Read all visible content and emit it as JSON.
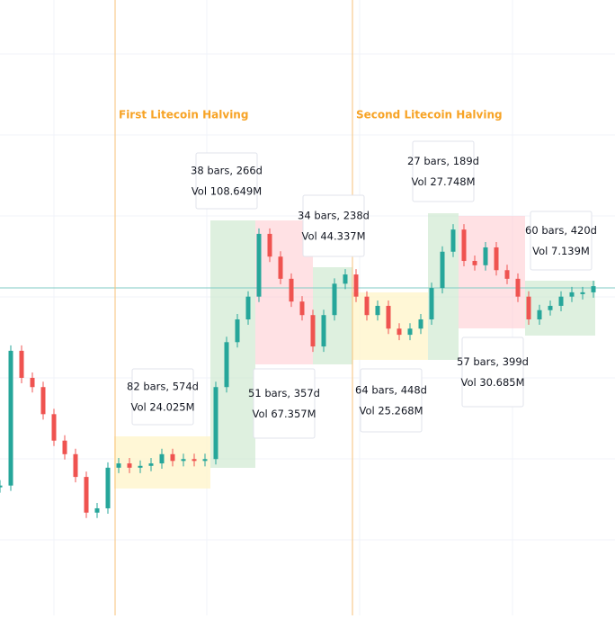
{
  "chart_data": {
    "type": "line",
    "color_up": "#26a69a",
    "color_down": "#ef5350",
    "ylim": [
      0,
      100
    ],
    "values": [
      21.1,
      43.0,
      38.6,
      37.1,
      32.7,
      28.4,
      26.2,
      22.5,
      16.7,
      17.4,
      24.0,
      24.7,
      24.0,
      24.3,
      24.7,
      26.2,
      25.1,
      25.4,
      25.1,
      25.4,
      37.1,
      44.4,
      48.1,
      51.8,
      62.0,
      58.3,
      54.7,
      51.0,
      48.8,
      43.7,
      48.8,
      53.9,
      55.4,
      51.8,
      48.8,
      50.3,
      46.6,
      45.6,
      46.6,
      48.1,
      53.2,
      59.1,
      62.7,
      57.6,
      56.9,
      59.8,
      56.1,
      54.7,
      51.8,
      48.1,
      49.6,
      50.3,
      51.8,
      52.5,
      52.5,
      53.5
    ]
  },
  "halvings": [
    "First Litecoin Halving",
    "Second Litecoin Halving"
  ],
  "ranges": [
    {
      "bars": "82 bars, 574d",
      "volume": "Vol 24.025M"
    },
    {
      "bars": "38 bars, 266d",
      "volume": "Vol 108.649M"
    },
    {
      "bars": "51 bars, 357d",
      "volume": "Vol 67.357M"
    },
    {
      "bars": "34 bars, 238d",
      "volume": "Vol 44.337M"
    },
    {
      "bars": "64 bars, 448d",
      "volume": "Vol 25.268M"
    },
    {
      "bars": "27 bars, 189d",
      "volume": "Vol 27.748M"
    },
    {
      "bars": "57 bars, 399d",
      "volume": "Vol 30.685M"
    },
    {
      "bars": "60 bars, 420d",
      "volume": "Vol 7.139M"
    }
  ]
}
